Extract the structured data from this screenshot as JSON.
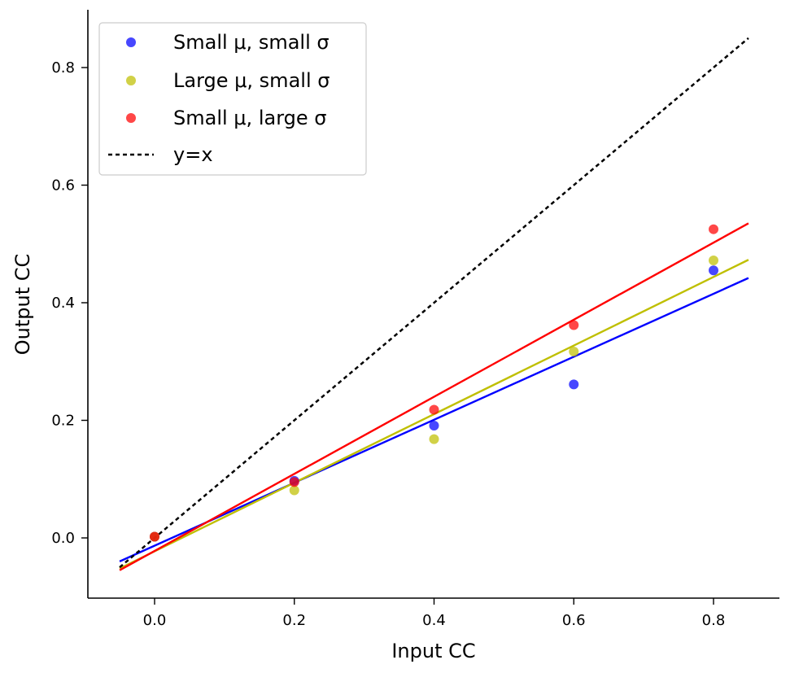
{
  "chart_data": {
    "type": "scatter",
    "xlabel": "Input CC",
    "ylabel": "Output CC",
    "xlim": [
      -0.1,
      0.89
    ],
    "ylim": [
      -0.1,
      0.89
    ],
    "x_ticks": [
      "0.0",
      "0.2",
      "0.4",
      "0.6",
      "0.8"
    ],
    "y_ticks": [
      "0.0",
      "0.2",
      "0.4",
      "0.6",
      "0.8"
    ],
    "grid": false,
    "legend_position": "top-left",
    "series": [
      {
        "name": "Small μ, small σ",
        "color": "#0000ff",
        "x": [
          0.0,
          0.2,
          0.4,
          0.6,
          0.8
        ],
        "y": [
          0.002,
          0.097,
          0.191,
          0.261,
          0.455
        ],
        "fit": {
          "x": [
            -0.05,
            0.85
          ],
          "y": [
            -0.04,
            0.442
          ]
        }
      },
      {
        "name": "Large μ, small σ",
        "color": "#bfbf00",
        "x": [
          0.0,
          0.2,
          0.4,
          0.6,
          0.8
        ],
        "y": [
          0.002,
          0.081,
          0.168,
          0.317,
          0.472
        ],
        "fit": {
          "x": [
            -0.05,
            0.85
          ],
          "y": [
            -0.052,
            0.473
          ]
        }
      },
      {
        "name": "Small μ, large σ",
        "color": "#ff0000",
        "x": [
          0.0,
          0.2,
          0.4,
          0.6,
          0.8
        ],
        "y": [
          0.002,
          0.095,
          0.218,
          0.362,
          0.525
        ],
        "fit": {
          "x": [
            -0.05,
            0.85
          ],
          "y": [
            -0.055,
            0.535
          ]
        }
      }
    ],
    "reference_line": {
      "name": "y=x",
      "color": "#000000",
      "style": "dotted",
      "x": [
        -0.05,
        0.85
      ],
      "y": [
        -0.05,
        0.85
      ]
    }
  }
}
